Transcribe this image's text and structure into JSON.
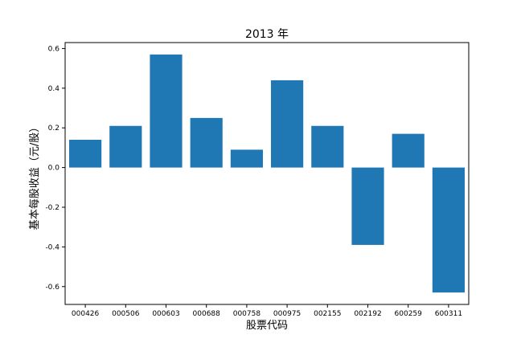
{
  "chart_data": {
    "type": "bar",
    "title": "2013 年",
    "xlabel": "股票代码",
    "ylabel": "基本每股收益（元/股）",
    "categories": [
      "000426",
      "000506",
      "000603",
      "000688",
      "000758",
      "000975",
      "002155",
      "002192",
      "600259",
      "600311"
    ],
    "values": [
      0.14,
      0.21,
      0.57,
      0.25,
      0.09,
      0.44,
      0.21,
      -0.39,
      0.17,
      -0.63
    ],
    "yticks": [
      "0.6",
      "0.4",
      "0.2",
      "0.0",
      "-0.2",
      "-0.4",
      "-0.6"
    ],
    "ylim": [
      -0.69,
      0.63
    ],
    "bar_color": "#1f77b4",
    "grid": false,
    "legend": "none"
  }
}
